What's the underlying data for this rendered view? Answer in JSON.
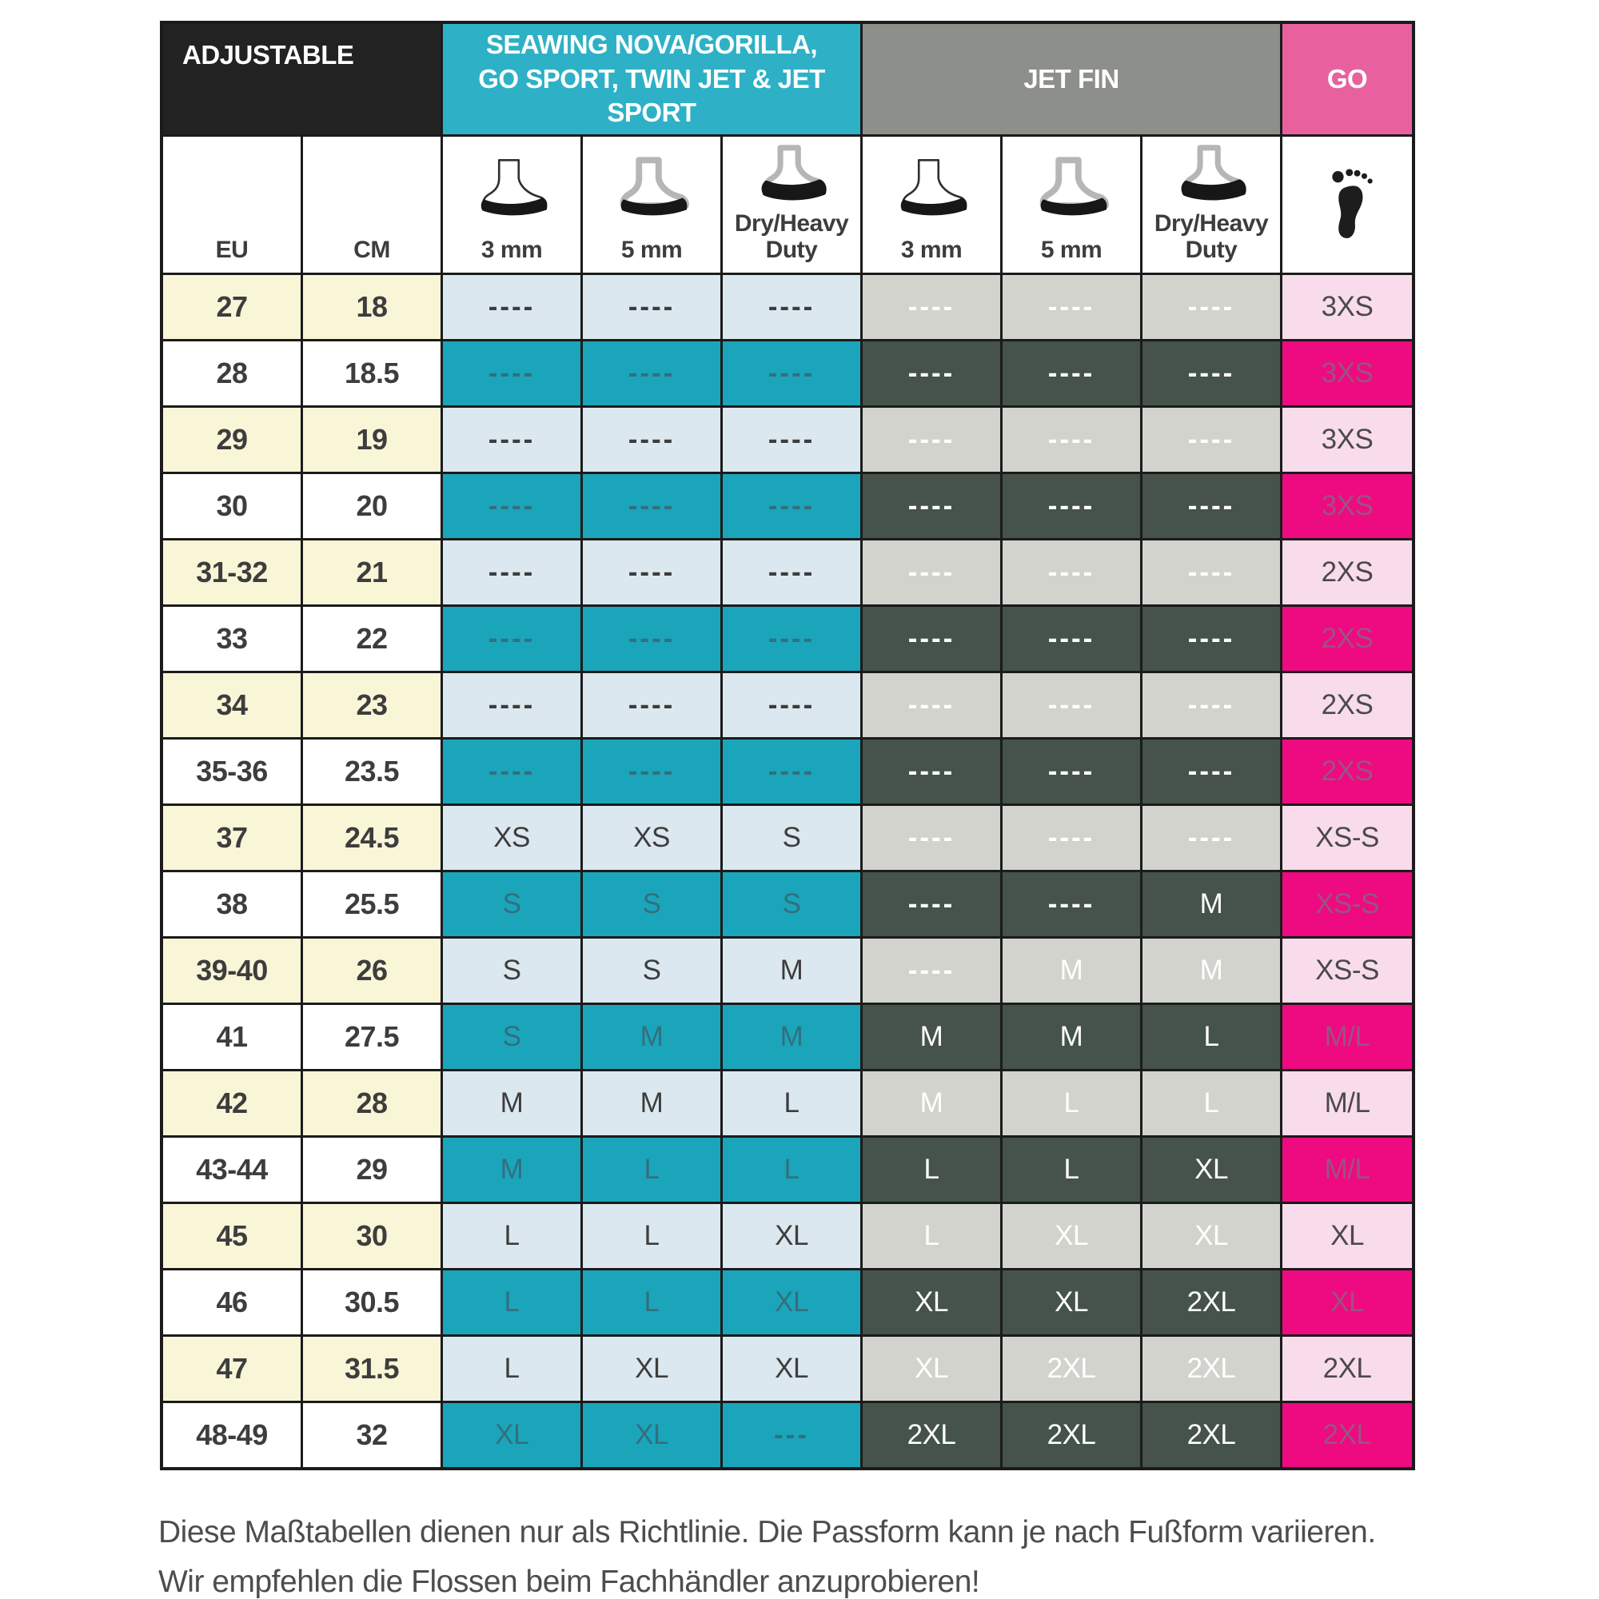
{
  "header": {
    "adjustable": "ADJUSTABLE",
    "seawing": "SEAWING NOVA/GORILLA, GO SPORT, TWIN JET & JET SPORT",
    "jetfin": "JET FIN",
    "go": "GO"
  },
  "subheader": {
    "eu": "EU",
    "cm": "CM",
    "seawing_cols": [
      "3 mm",
      "5 mm",
      "Dry/Heavy Duty"
    ],
    "jetfin_cols": [
      "3 mm",
      "5 mm",
      "Dry/Heavy Duty"
    ]
  },
  "icons": {
    "boot_3mm": "boot-icon",
    "boot_5mm": "thick-lined-boot-icon",
    "boot_dry": "heavy-sole-boot-icon",
    "go_foot": "barefoot-icon"
  },
  "colors": {
    "border": "#1b1b1b",
    "blackhdr": "#222222",
    "cyan": "#2eb1c6",
    "grayhdr": "#8d8f8b",
    "pinkhdr": "#e8619e",
    "cream": "#f9f5d7",
    "ltblue": "#dce8ef",
    "teal": "#1ba5bb",
    "ltgray": "#d2d3cc",
    "olive": "#45534a",
    "ltpink": "#f9dceb",
    "magenta": "#ee0a80",
    "tealtext": "#336f7e",
    "magtext": "#9a5383",
    "darktext": "#3d3d3d",
    "caption": "#4d4d4d"
  },
  "chart_data": {
    "type": "table",
    "title": "Fin size chart (Adjustable: Seawing Nova/Gorilla, Go Sport, Twin Jet & Jet Sport / Jet Fin / GO)",
    "columns": [
      "EU",
      "CM",
      "Seawing 3 mm",
      "Seawing 5 mm",
      "Seawing Dry/Heavy Duty",
      "Jet Fin 3 mm",
      "Jet Fin 5 mm",
      "Jet Fin Dry/Heavy Duty",
      "GO"
    ],
    "rows": [
      {
        "eu": "27",
        "cm": "18",
        "seawing": [
          "----",
          "----",
          "----"
        ],
        "jetfin": [
          "----",
          "----",
          "----"
        ],
        "go": "3XS",
        "shade": "light"
      },
      {
        "eu": "28",
        "cm": "18.5",
        "seawing": [
          "----",
          "----",
          "----"
        ],
        "jetfin": [
          "----",
          "----",
          "----"
        ],
        "go": "3XS",
        "shade": "dark"
      },
      {
        "eu": "29",
        "cm": "19",
        "seawing": [
          "----",
          "----",
          "----"
        ],
        "jetfin": [
          "----",
          "----",
          "----"
        ],
        "go": "3XS",
        "shade": "light"
      },
      {
        "eu": "30",
        "cm": "20",
        "seawing": [
          "----",
          "----",
          "----"
        ],
        "jetfin": [
          "----",
          "----",
          "----"
        ],
        "go": "3XS",
        "shade": "dark"
      },
      {
        "eu": "31-32",
        "cm": "21",
        "seawing": [
          "----",
          "----",
          "----"
        ],
        "jetfin": [
          "----",
          "----",
          "----"
        ],
        "go": "2XS",
        "shade": "light"
      },
      {
        "eu": "33",
        "cm": "22",
        "seawing": [
          "----",
          "----",
          "----"
        ],
        "jetfin": [
          "----",
          "----",
          "----"
        ],
        "go": "2XS",
        "shade": "dark"
      },
      {
        "eu": "34",
        "cm": "23",
        "seawing": [
          "----",
          "----",
          "----"
        ],
        "jetfin": [
          "----",
          "----",
          "----"
        ],
        "go": "2XS",
        "shade": "light"
      },
      {
        "eu": "35-36",
        "cm": "23.5",
        "seawing": [
          "----",
          "----",
          "----"
        ],
        "jetfin": [
          "----",
          "----",
          "----"
        ],
        "go": "2XS",
        "shade": "dark"
      },
      {
        "eu": "37",
        "cm": "24.5",
        "seawing": [
          "XS",
          "XS",
          "S"
        ],
        "jetfin": [
          "----",
          "----",
          "----"
        ],
        "go": "XS-S",
        "shade": "light"
      },
      {
        "eu": "38",
        "cm": "25.5",
        "seawing": [
          "S",
          "S",
          "S"
        ],
        "jetfin": [
          "----",
          "----",
          "M"
        ],
        "go": "XS-S",
        "shade": "dark"
      },
      {
        "eu": "39-40",
        "cm": "26",
        "seawing": [
          "S",
          "S",
          "M"
        ],
        "jetfin": [
          "----",
          "M",
          "M"
        ],
        "go": "XS-S",
        "shade": "light"
      },
      {
        "eu": "41",
        "cm": "27.5",
        "seawing": [
          "S",
          "M",
          "M"
        ],
        "jetfin": [
          "M",
          "M",
          "L"
        ],
        "go": "M/L",
        "shade": "dark"
      },
      {
        "eu": "42",
        "cm": "28",
        "seawing": [
          "M",
          "M",
          "L"
        ],
        "jetfin": [
          "M",
          "L",
          "L"
        ],
        "go": "M/L",
        "shade": "light"
      },
      {
        "eu": "43-44",
        "cm": "29",
        "seawing": [
          "M",
          "L",
          "L"
        ],
        "jetfin": [
          "L",
          "L",
          "XL"
        ],
        "go": "M/L",
        "shade": "dark"
      },
      {
        "eu": "45",
        "cm": "30",
        "seawing": [
          "L",
          "L",
          "XL"
        ],
        "jetfin": [
          "L",
          "XL",
          "XL"
        ],
        "go": "XL",
        "shade": "light"
      },
      {
        "eu": "46",
        "cm": "30.5",
        "seawing": [
          "L",
          "L",
          "XL"
        ],
        "jetfin": [
          "XL",
          "XL",
          "2XL"
        ],
        "go": "XL",
        "shade": "dark"
      },
      {
        "eu": "47",
        "cm": "31.5",
        "seawing": [
          "L",
          "XL",
          "XL"
        ],
        "jetfin": [
          "XL",
          "2XL",
          "2XL"
        ],
        "go": "2XL",
        "shade": "light"
      },
      {
        "eu": "48-49",
        "cm": "32",
        "seawing": [
          "XL",
          "XL",
          "---"
        ],
        "jetfin": [
          "2XL",
          "2XL",
          "2XL"
        ],
        "go": "2XL",
        "shade": "dark"
      }
    ]
  },
  "footnote": {
    "line1": "Diese Maßtabellen dienen nur als Richtlinie. Die Passform kann je nach Fußform variieren.",
    "line2": "Wir empfehlen die Flossen beim Fachhändler anzuprobieren!"
  }
}
